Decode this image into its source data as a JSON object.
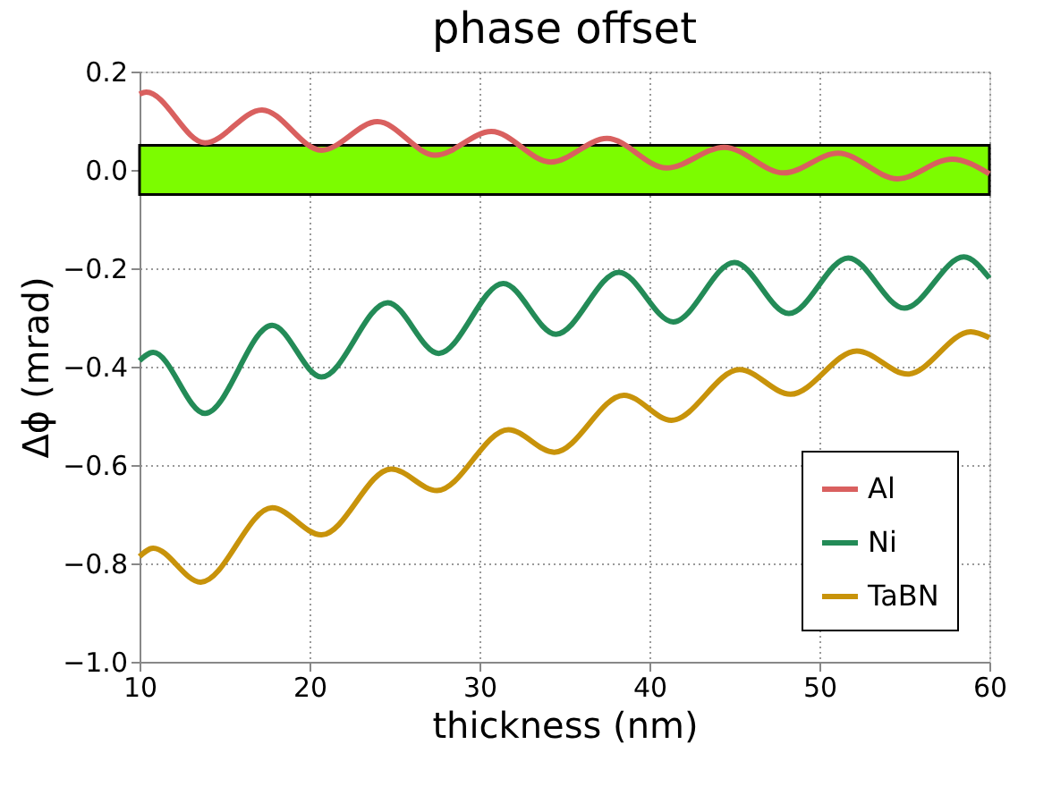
{
  "chart_data": {
    "type": "line",
    "title": "phase offset",
    "xlabel": "thickness (nm)",
    "ylabel": "Δϕ (mrad)",
    "xlim": [
      10,
      60
    ],
    "xticks": [
      10,
      20,
      30,
      40,
      50,
      60
    ],
    "ylim": [
      -1.0,
      0.2
    ],
    "yticks": [
      {
        "value": -1.0,
        "label": "−1.0"
      },
      {
        "value": -0.8,
        "label": "−0.8"
      },
      {
        "value": -0.6,
        "label": "−0.6"
      },
      {
        "value": -0.4,
        "label": "−0.4"
      },
      {
        "value": -0.2,
        "label": "−0.2"
      },
      {
        "value": 0.0,
        "label": "0.0"
      },
      {
        "value": 0.2,
        "label": "0.2"
      }
    ],
    "grid": true,
    "legend": "bottom right",
    "line_style": "solid",
    "bands": [
      {
        "axis": "y",
        "from": -0.05,
        "to": 0.05,
        "color": "#7cfc00"
      }
    ],
    "series": [
      {
        "name": "Al",
        "color": "#d9605f",
        "x": [
          10,
          10.4,
          13.85,
          17.2,
          20.7,
          24.0,
          27.4,
          30.7,
          34.2,
          37.5,
          41.0,
          44.4,
          47.9,
          51.1,
          54.6,
          57.8,
          60
        ],
        "values": [
          0.154,
          0.158,
          0.055,
          0.122,
          0.04,
          0.098,
          0.03,
          0.078,
          0.016,
          0.064,
          0.004,
          0.046,
          -0.006,
          0.034,
          -0.018,
          0.022,
          -0.008
        ]
      },
      {
        "name": "Ni",
        "color": "#238b57",
        "x": [
          10,
          10.8,
          13.85,
          17.8,
          20.7,
          24.6,
          27.6,
          31.4,
          34.5,
          38.2,
          41.4,
          45.0,
          48.2,
          51.7,
          55.0,
          58.5,
          60
        ],
        "values": [
          -0.388,
          -0.371,
          -0.495,
          -0.316,
          -0.421,
          -0.27,
          -0.373,
          -0.231,
          -0.334,
          -0.208,
          -0.309,
          -0.188,
          -0.292,
          -0.179,
          -0.281,
          -0.177,
          -0.22
        ]
      },
      {
        "name": "TaBN",
        "color": "#c8930a",
        "x": [
          10,
          10.8,
          13.6,
          17.8,
          20.7,
          24.8,
          27.5,
          31.7,
          34.4,
          38.5,
          41.3,
          45.3,
          48.3,
          52.2,
          55.2,
          58.9,
          60
        ],
        "values": [
          -0.786,
          -0.769,
          -0.838,
          -0.687,
          -0.742,
          -0.608,
          -0.652,
          -0.528,
          -0.574,
          -0.458,
          -0.509,
          -0.406,
          -0.456,
          -0.368,
          -0.415,
          -0.329,
          -0.341
        ]
      }
    ]
  }
}
